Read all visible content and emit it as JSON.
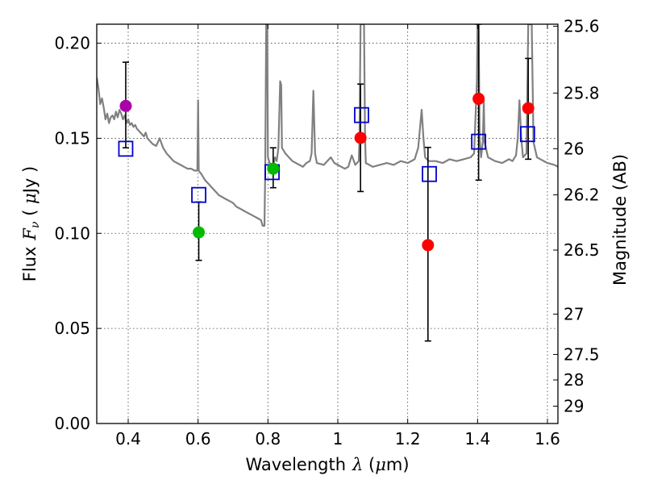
{
  "chart_data": {
    "type": "scatter",
    "title": "",
    "xlabel_text": "Wavelength",
    "xlabel_math": "λ",
    "xlabel_unit_open": " (",
    "xlabel_unit_math": "μ",
    "xlabel_unit_tail": "m)",
    "ylabel_text": "Flux",
    "ylabel_math": "F",
    "ylabel_sub": "ν",
    "ylabel_unit_open": " ( ",
    "ylabel_unit_math": "μ",
    "ylabel_unit_tail": "Jy )",
    "y2label": "Magnitude (AB)",
    "xlim": [
      0.31,
      1.63
    ],
    "ylim": [
      0.0,
      0.21
    ],
    "grid": true,
    "x_ticks": [
      0.4,
      0.6,
      0.8,
      1.0,
      1.2,
      1.4,
      1.6
    ],
    "x_tick_labels": [
      "0.4",
      "0.6",
      "0.8",
      "1",
      "1.2",
      "1.4",
      "1.6"
    ],
    "y_ticks": [
      0.0,
      0.05,
      0.1,
      0.15,
      0.2
    ],
    "y_tick_labels": [
      "0.00",
      "0.05",
      "0.10",
      "0.15",
      "0.20"
    ],
    "y2_ticks": [
      25.6,
      25.8,
      26.0,
      26.2,
      26.5,
      27.0,
      27.5,
      28.0,
      29.0
    ],
    "y2_tick_labels": [
      "25.6",
      "25.8",
      "26",
      "26.2",
      "26.5",
      "27",
      "27.5",
      "28",
      "29"
    ],
    "colors": {
      "model": "#808080",
      "model_photometry": "#0000cc",
      "observed_purple": "#aa00aa",
      "observed_green": "#00bb00",
      "observed_red": "#ff0000",
      "errorbar": "#000000"
    },
    "series": [
      {
        "kind": "line",
        "color_key": "model",
        "points": [
          [
            0.31,
            0.182
          ],
          [
            0.315,
            0.176
          ],
          [
            0.32,
            0.168
          ],
          [
            0.325,
            0.171
          ],
          [
            0.33,
            0.166
          ],
          [
            0.335,
            0.16
          ],
          [
            0.34,
            0.163
          ],
          [
            0.345,
            0.158
          ],
          [
            0.35,
            0.161
          ],
          [
            0.355,
            0.162
          ],
          [
            0.36,
            0.16
          ],
          [
            0.365,
            0.164
          ],
          [
            0.37,
            0.161
          ],
          [
            0.375,
            0.165
          ],
          [
            0.38,
            0.163
          ],
          [
            0.385,
            0.16
          ],
          [
            0.39,
            0.162
          ],
          [
            0.395,
            0.158
          ],
          [
            0.4,
            0.16
          ],
          [
            0.405,
            0.157
          ],
          [
            0.41,
            0.158
          ],
          [
            0.415,
            0.156
          ],
          [
            0.42,
            0.157
          ],
          [
            0.425,
            0.155
          ],
          [
            0.43,
            0.154
          ],
          [
            0.435,
            0.153
          ],
          [
            0.44,
            0.152
          ],
          [
            0.445,
            0.151
          ],
          [
            0.45,
            0.153
          ],
          [
            0.455,
            0.15
          ],
          [
            0.46,
            0.149
          ],
          [
            0.47,
            0.147
          ],
          [
            0.48,
            0.146
          ],
          [
            0.49,
            0.15
          ],
          [
            0.5,
            0.145
          ],
          [
            0.51,
            0.142
          ],
          [
            0.52,
            0.14
          ],
          [
            0.53,
            0.138
          ],
          [
            0.54,
            0.137
          ],
          [
            0.55,
            0.136
          ],
          [
            0.56,
            0.135
          ],
          [
            0.57,
            0.134
          ],
          [
            0.58,
            0.134
          ],
          [
            0.59,
            0.133
          ],
          [
            0.595,
            0.133
          ],
          [
            0.598,
            0.133
          ],
          [
            0.6,
            0.17
          ],
          [
            0.602,
            0.133
          ],
          [
            0.61,
            0.131
          ],
          [
            0.62,
            0.128
          ],
          [
            0.63,
            0.126
          ],
          [
            0.64,
            0.124
          ],
          [
            0.65,
            0.122
          ],
          [
            0.66,
            0.12
          ],
          [
            0.67,
            0.119
          ],
          [
            0.68,
            0.118
          ],
          [
            0.69,
            0.117
          ],
          [
            0.7,
            0.116
          ],
          [
            0.71,
            0.114
          ],
          [
            0.72,
            0.113
          ],
          [
            0.73,
            0.112
          ],
          [
            0.74,
            0.111
          ],
          [
            0.75,
            0.11
          ],
          [
            0.76,
            0.109
          ],
          [
            0.77,
            0.108
          ],
          [
            0.78,
            0.107
          ],
          [
            0.785,
            0.104
          ],
          [
            0.79,
            0.104
          ],
          [
            0.792,
            0.13
          ],
          [
            0.795,
            0.21
          ],
          [
            0.798,
            0.21
          ],
          [
            0.8,
            0.14
          ],
          [
            0.805,
            0.137
          ],
          [
            0.81,
            0.136
          ],
          [
            0.815,
            0.135
          ],
          [
            0.82,
            0.14
          ],
          [
            0.825,
            0.138
          ],
          [
            0.83,
            0.145
          ],
          [
            0.835,
            0.18
          ],
          [
            0.838,
            0.178
          ],
          [
            0.84,
            0.145
          ],
          [
            0.85,
            0.142
          ],
          [
            0.86,
            0.14
          ],
          [
            0.87,
            0.138
          ],
          [
            0.88,
            0.137
          ],
          [
            0.89,
            0.136
          ],
          [
            0.9,
            0.135
          ],
          [
            0.91,
            0.137
          ],
          [
            0.92,
            0.138
          ],
          [
            0.925,
            0.142
          ],
          [
            0.93,
            0.175
          ],
          [
            0.935,
            0.142
          ],
          [
            0.94,
            0.137
          ],
          [
            0.96,
            0.136
          ],
          [
            0.98,
            0.14
          ],
          [
            0.99,
            0.137
          ],
          [
            1.0,
            0.136
          ],
          [
            1.01,
            0.135
          ],
          [
            1.02,
            0.134
          ],
          [
            1.03,
            0.135
          ],
          [
            1.04,
            0.141
          ],
          [
            1.05,
            0.136
          ],
          [
            1.06,
            0.138
          ],
          [
            1.062,
            0.15
          ],
          [
            1.065,
            0.21
          ],
          [
            1.075,
            0.21
          ],
          [
            1.078,
            0.15
          ],
          [
            1.08,
            0.137
          ],
          [
            1.09,
            0.136
          ],
          [
            1.1,
            0.135
          ],
          [
            1.12,
            0.136
          ],
          [
            1.14,
            0.137
          ],
          [
            1.16,
            0.136
          ],
          [
            1.18,
            0.138
          ],
          [
            1.2,
            0.137
          ],
          [
            1.22,
            0.139
          ],
          [
            1.23,
            0.145
          ],
          [
            1.24,
            0.165
          ],
          [
            1.245,
            0.15
          ],
          [
            1.25,
            0.14
          ],
          [
            1.26,
            0.138
          ],
          [
            1.28,
            0.138
          ],
          [
            1.3,
            0.137
          ],
          [
            1.32,
            0.139
          ],
          [
            1.34,
            0.138
          ],
          [
            1.36,
            0.139
          ],
          [
            1.38,
            0.14
          ],
          [
            1.39,
            0.142
          ],
          [
            1.398,
            0.18
          ],
          [
            1.4,
            0.21
          ],
          [
            1.403,
            0.21
          ],
          [
            1.406,
            0.15
          ],
          [
            1.41,
            0.14
          ],
          [
            1.415,
            0.148
          ],
          [
            1.418,
            0.17
          ],
          [
            1.42,
            0.148
          ],
          [
            1.43,
            0.14
          ],
          [
            1.45,
            0.138
          ],
          [
            1.47,
            0.137
          ],
          [
            1.49,
            0.139
          ],
          [
            1.5,
            0.138
          ],
          [
            1.51,
            0.141
          ],
          [
            1.515,
            0.15
          ],
          [
            1.52,
            0.17
          ],
          [
            1.525,
            0.15
          ],
          [
            1.53,
            0.14
          ],
          [
            1.54,
            0.142
          ],
          [
            1.545,
            0.21
          ],
          [
            1.555,
            0.21
          ],
          [
            1.56,
            0.148
          ],
          [
            1.57,
            0.14
          ],
          [
            1.58,
            0.139
          ],
          [
            1.6,
            0.137
          ],
          [
            1.62,
            0.136
          ],
          [
            1.63,
            0.135
          ]
        ]
      },
      {
        "kind": "squares",
        "name": "model_photometry",
        "color_key": "model_photometry",
        "points": [
          [
            0.393,
            0.1445
          ],
          [
            0.602,
            0.1202
          ],
          [
            0.812,
            0.1322
          ],
          [
            1.068,
            0.1622
          ],
          [
            1.262,
            0.1312
          ],
          [
            1.403,
            0.1482
          ],
          [
            1.543,
            0.1522
          ]
        ]
      },
      {
        "kind": "observed",
        "name": "observed",
        "points": [
          {
            "x": 0.393,
            "y": 0.167,
            "err": [
              0.145,
              0.19
            ],
            "color_key": "observed_purple"
          },
          {
            "x": 0.602,
            "y": 0.1005,
            "err": [
              0.0858,
              0.1165
            ],
            "color_key": "observed_green"
          },
          {
            "x": 0.815,
            "y": 0.134,
            "err": [
              0.124,
              0.145
            ],
            "color_key": "observed_green"
          },
          {
            "x": 1.065,
            "y": 0.1502,
            "err": [
              0.122,
              0.1785
            ],
            "color_key": "observed_red"
          },
          {
            "x": 1.258,
            "y": 0.0938,
            "err": [
              0.0434,
              0.1452
            ],
            "color_key": "observed_red"
          },
          {
            "x": 1.403,
            "y": 0.1708,
            "err": [
              0.128,
              0.21
            ],
            "color_key": "observed_red"
          },
          {
            "x": 1.545,
            "y": 0.1658,
            "err": [
              0.139,
              0.192
            ],
            "color_key": "observed_red"
          }
        ]
      }
    ]
  }
}
